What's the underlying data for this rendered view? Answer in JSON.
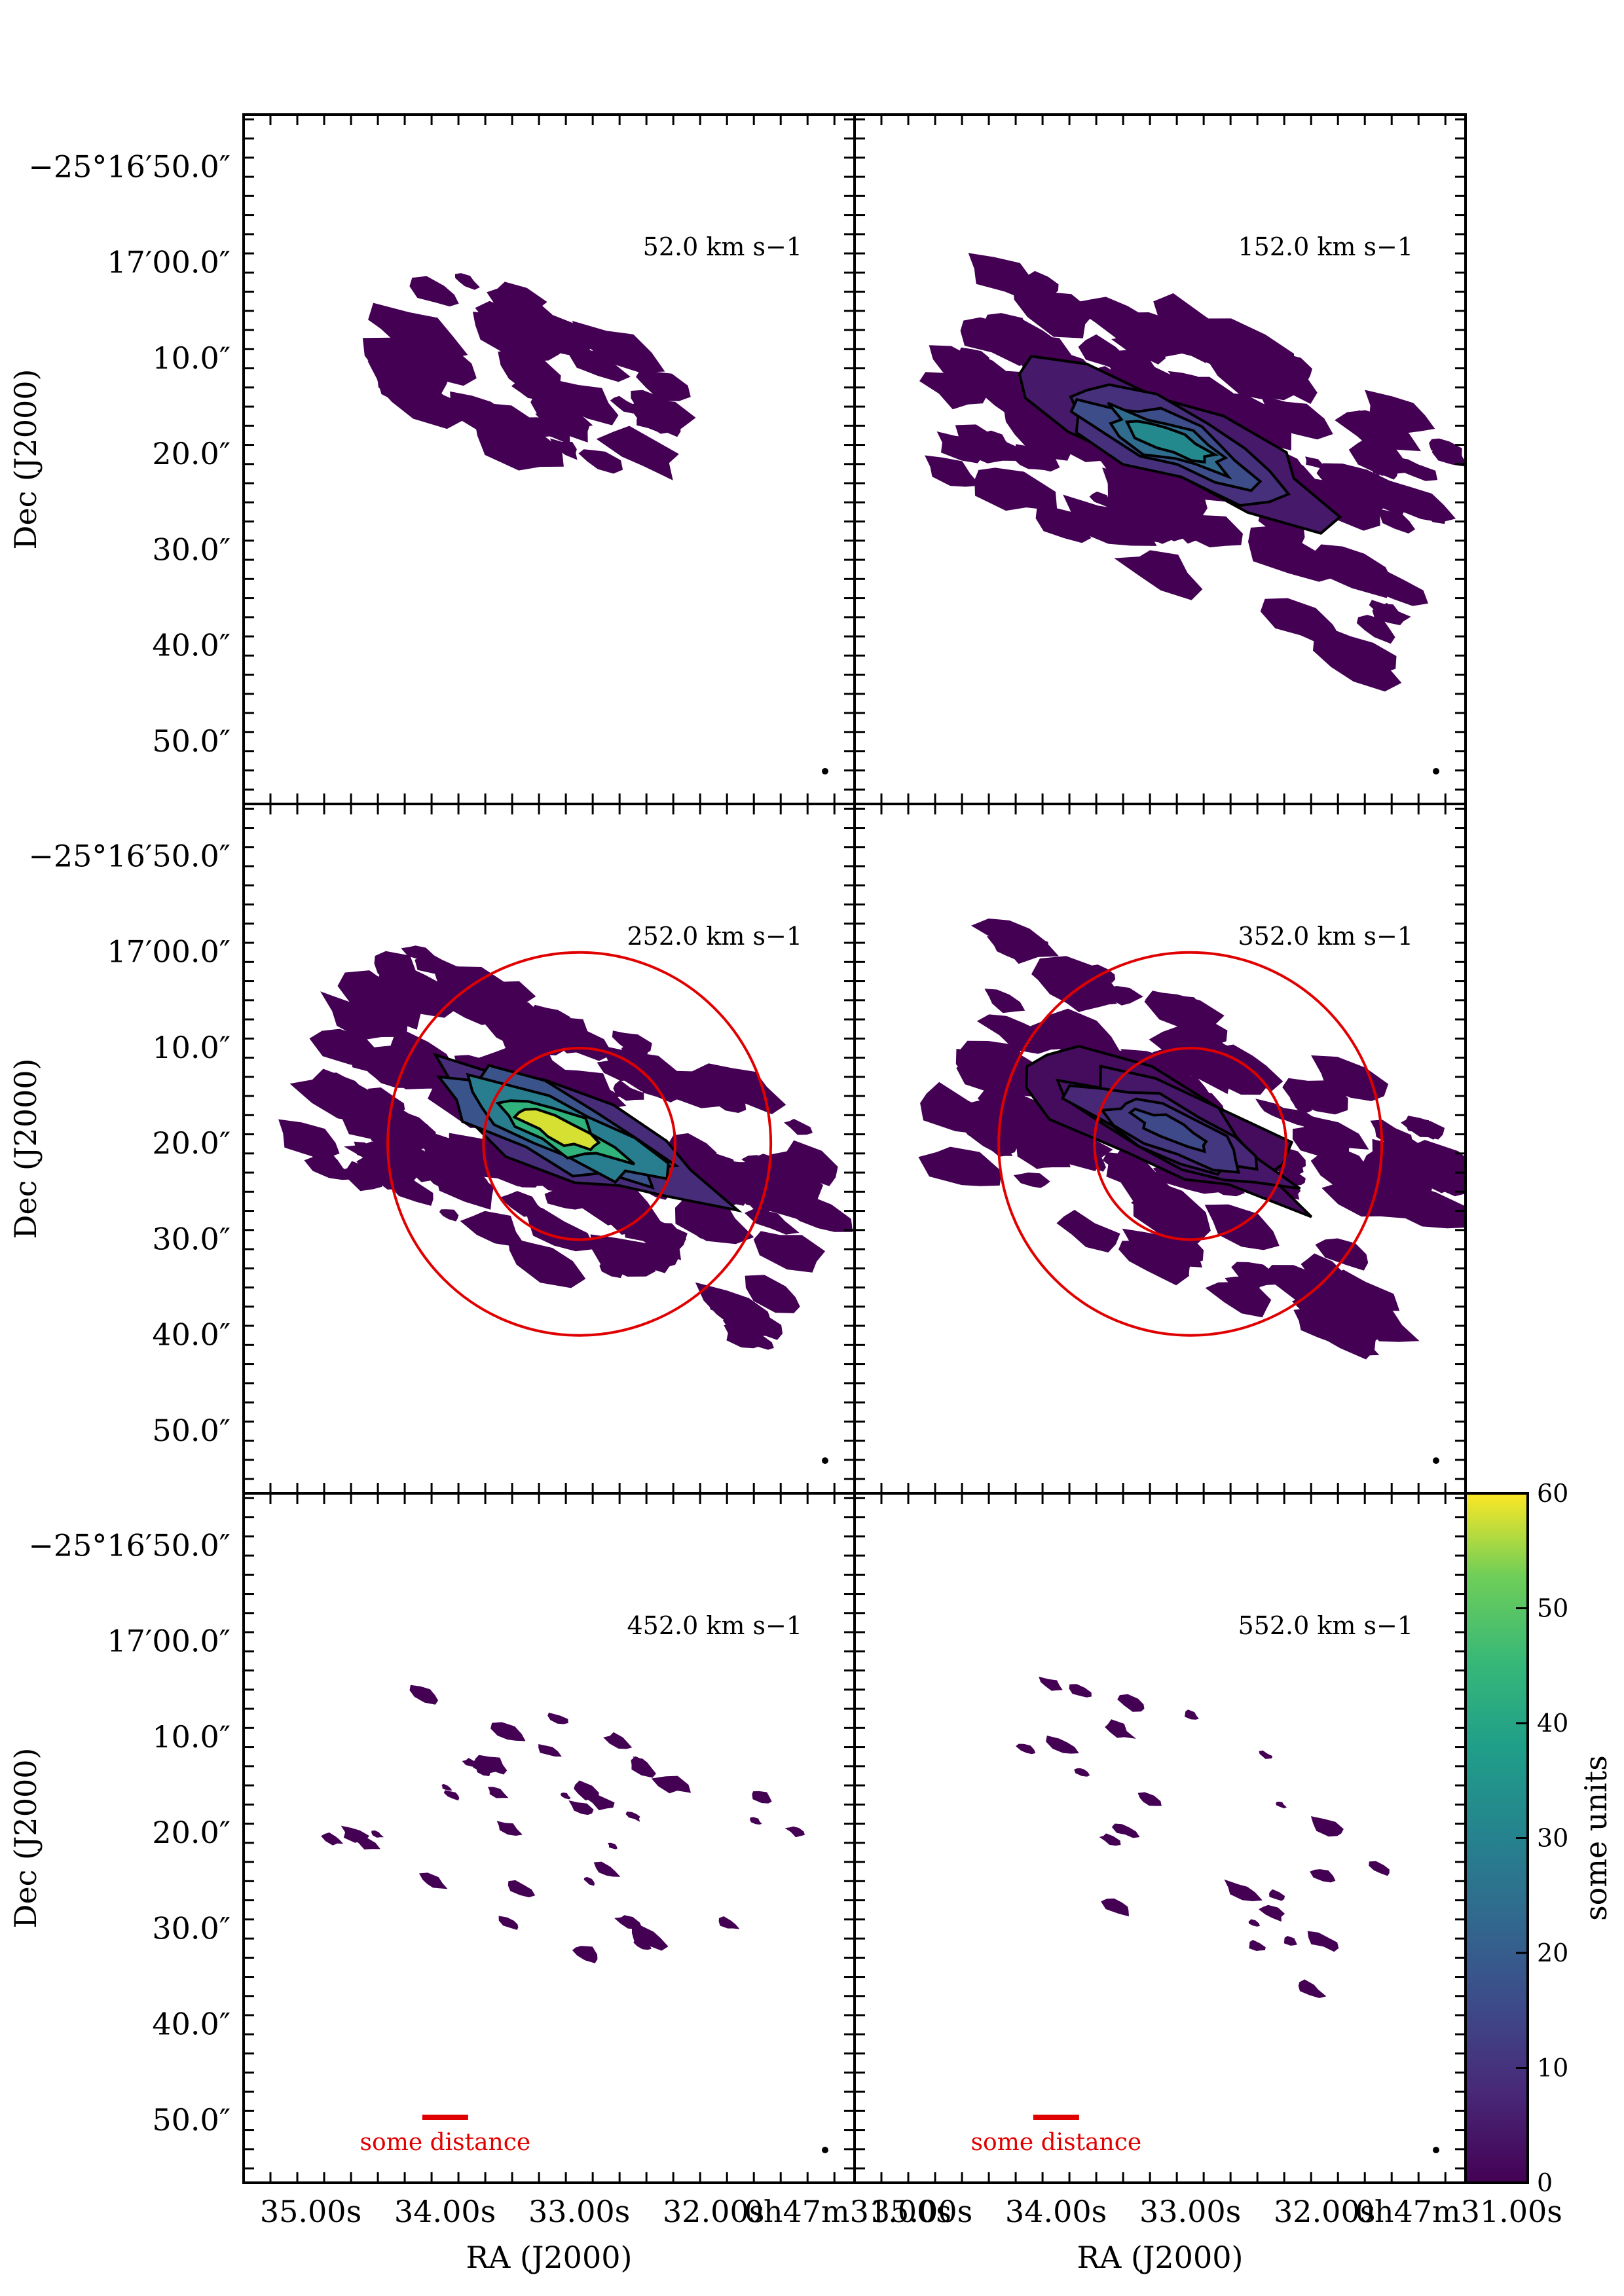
{
  "figure": {
    "xlabel": "RA (J2000)",
    "ylabel": "Dec (J2000)",
    "colorbar_label": "some units",
    "scale_bar_label": "some distance",
    "colormap": "viridis",
    "accent_colors": {
      "contour": "#000000",
      "circle": "#e00000",
      "scalebar": "#e00000",
      "emission_low": "#440154"
    }
  },
  "chart_data": {
    "type": "heatmap",
    "description_type": "channel-map grid (3 rows x 2 columns) with shared axes and a common colorbar",
    "xlabel": "RA (J2000)",
    "ylabel": "Dec (J2000)",
    "x_ticks_seconds": [
      35.0,
      34.0,
      33.0,
      32.0,
      31.0
    ],
    "x_tick_labels": [
      "35.00s",
      "34.00s",
      "33.00s",
      "32.00s",
      "0h47m31.00s"
    ],
    "y_ticks_arcsec": [
      50,
      60,
      70,
      80,
      90,
      100,
      110
    ],
    "y_tick_labels": [
      "−25°16′50.0″",
      "17′00.0″",
      "10.0″",
      "20.0″",
      "30.0″",
      "40.0″",
      "50.0″"
    ],
    "xlim_seconds": [
      35.5,
      30.95
    ],
    "ylim_arcsec_below_25deg16": [
      44.5,
      116.5
    ],
    "colorbar": {
      "min": 0,
      "max": 60,
      "ticks": [
        0,
        10,
        20,
        30,
        40,
        50,
        60
      ],
      "label": "some units"
    },
    "panels": [
      {
        "velocity": "52.0 km s−1",
        "peak": 8,
        "circles": false,
        "scalebar": false
      },
      {
        "velocity": "152.0 km s−1",
        "peak": 32,
        "circles": false,
        "scalebar": false
      },
      {
        "velocity": "252.0 km s−1",
        "peak": 58,
        "circles": true,
        "scalebar": false
      },
      {
        "velocity": "352.0 km s−1",
        "peak": 15,
        "circles": true,
        "scalebar": false
      },
      {
        "velocity": "452.0 km s−1",
        "peak": 6,
        "circles": false,
        "scalebar": true
      },
      {
        "velocity": "552.0 km s−1",
        "peak": 4,
        "circles": false,
        "scalebar": true
      }
    ],
    "circle_radii_arcsec": [
      10,
      20
    ],
    "circle_center": {
      "ra_seconds": 33.0,
      "dec_arcsec": 80
    }
  }
}
